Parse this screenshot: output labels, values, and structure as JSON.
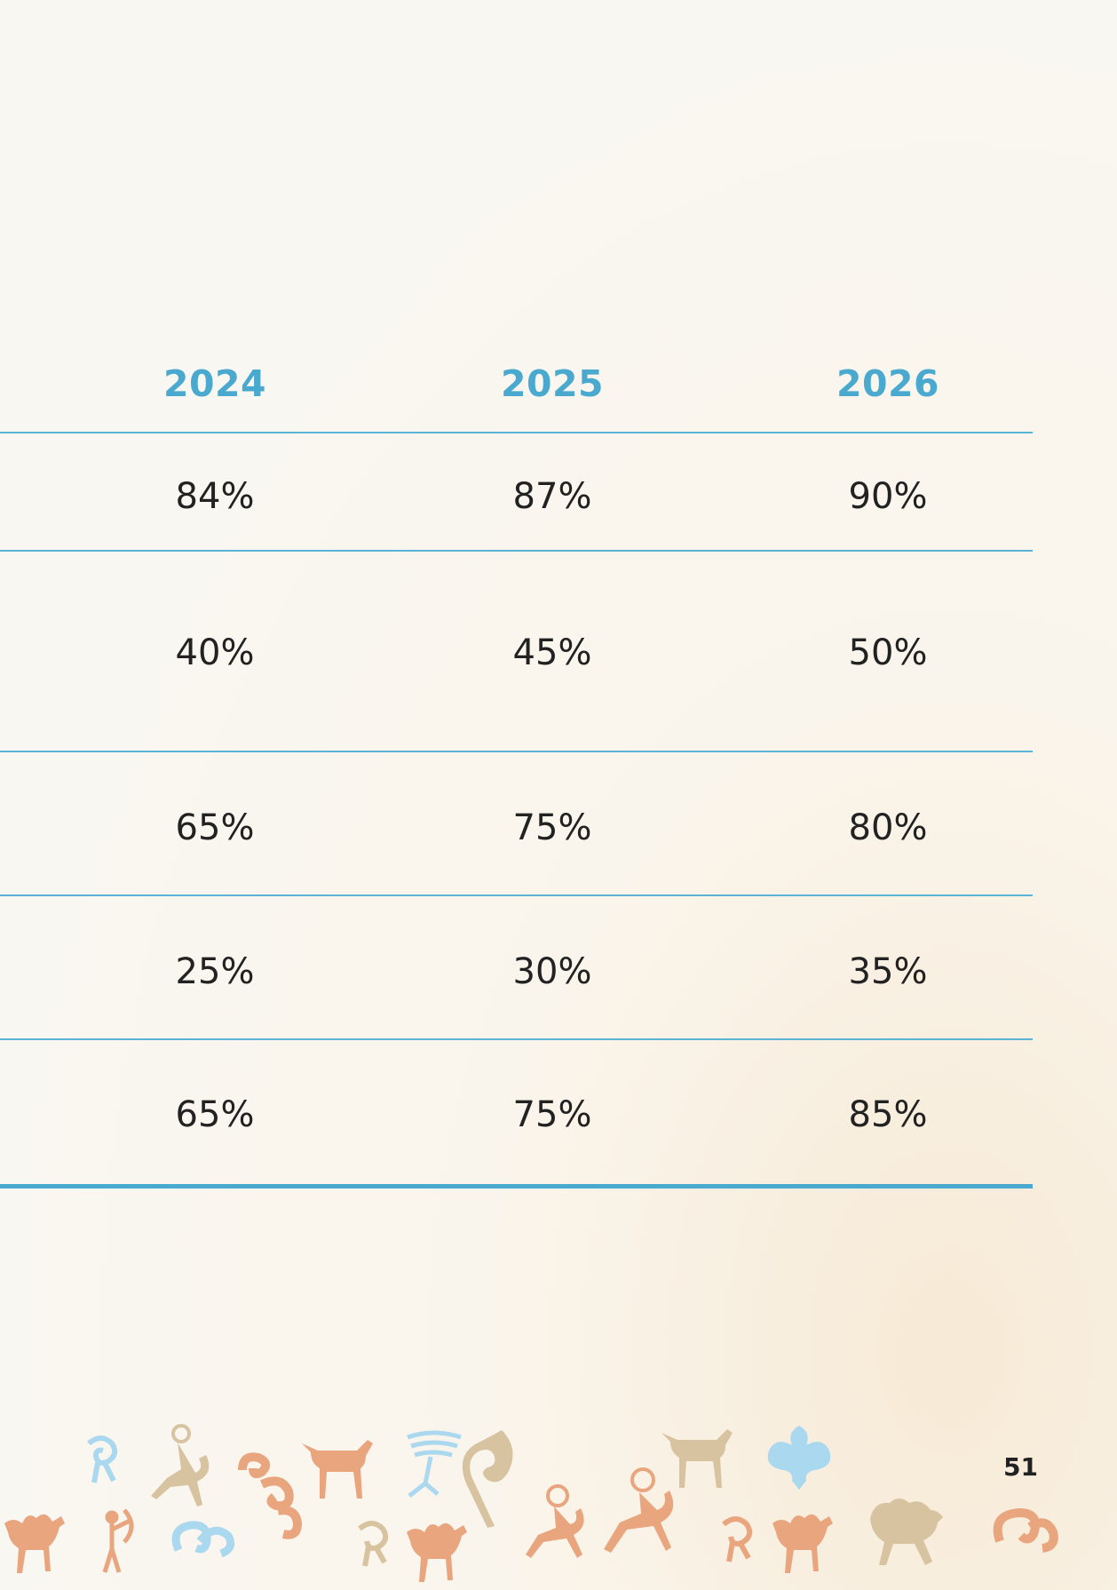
{
  "table": {
    "columns": [
      "2024",
      "2025",
      "2026"
    ],
    "rows": [
      [
        "84%",
        "87%",
        "90%"
      ],
      [
        "40%",
        "45%",
        "50%"
      ],
      [
        "65%",
        "75%",
        "80%"
      ],
      [
        "25%",
        "30%",
        "35%"
      ],
      [
        "65%",
        "75%",
        "85%"
      ]
    ]
  },
  "page_number": "51",
  "colors": {
    "accent": "#4aa9cf",
    "ornament_orange": "#e8a57e",
    "ornament_tan": "#d8c3a0",
    "ornament_blue": "#a9d8ef"
  },
  "ornament_icons": [
    "camel-icon",
    "spiral-icon",
    "archer-icon",
    "horse-icon",
    "tree-icon",
    "rider-icon",
    "bull-icon",
    "cloud-icon"
  ]
}
